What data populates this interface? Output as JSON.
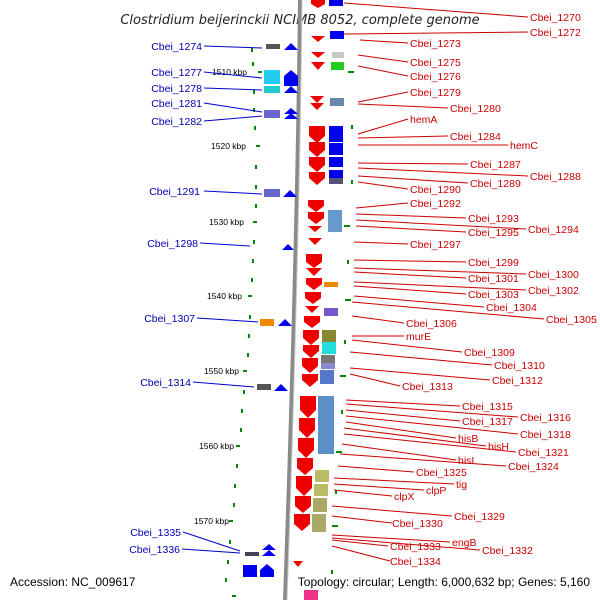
{
  "title": "Clostridium beijerinckii NCIMB 8052, complete genome",
  "footer": {
    "accession": "Accession: NC_009617",
    "topology": "Topology: circular; Length: 6,000,632 bp; Genes: 5,160"
  },
  "colors": {
    "forward_gene": "#0000dd",
    "reverse_gene": "#ee0000",
    "backbone": "#888888",
    "ticks": "#008800",
    "left_label": "#0000b0",
    "right_label": "#cc0000"
  },
  "scale_labels": [
    "1510 kbp",
    "1520 kbp",
    "1530 kbp",
    "1540 kbp",
    "1550 kbp",
    "1560 kbp",
    "1570 kbp"
  ],
  "left_labels": [
    "Cbei_1274",
    "Cbei_1277",
    "Cbei_1278",
    "Cbei_1281",
    "Cbei_1282",
    "Cbei_1291",
    "Cbei_1298",
    "Cbei_1307",
    "Cbei_1314",
    "Cbei_1335",
    "Cbei_1336"
  ],
  "right_labels": [
    "Cbei_1270",
    "Cbei_1272",
    "Cbei_1273",
    "Cbei_1275",
    "Cbei_1276",
    "Cbei_1279",
    "Cbei_1280",
    "hemA",
    "Cbei_1284",
    "hemC",
    "Cbei_1287",
    "Cbei_1288",
    "Cbei_1289",
    "Cbei_1290",
    "Cbei_1292",
    "Cbei_1293",
    "Cbei_1294",
    "Cbei_1295",
    "Cbei_1297",
    "Cbei_1299",
    "Cbei_1300",
    "Cbei_1301",
    "Cbei_1302",
    "Cbei_1303",
    "Cbei_1304",
    "Cbei_1305",
    "Cbei_1306",
    "murE",
    "Cbei_1309",
    "Cbei_1310",
    "Cbei_1312",
    "Cbei_1313",
    "Cbei_1315",
    "Cbei_1316",
    "Cbei_1317",
    "Cbei_1318",
    "hisB",
    "hisH",
    "Cbei_1321",
    "hisI",
    "Cbei_1324",
    "Cbei_1325",
    "tig",
    "clpP",
    "clpX",
    "Cbei_1329",
    "Cbei_1330",
    "engB",
    "Cbei_1332",
    "Cbei_1333",
    "Cbei_1334"
  ]
}
